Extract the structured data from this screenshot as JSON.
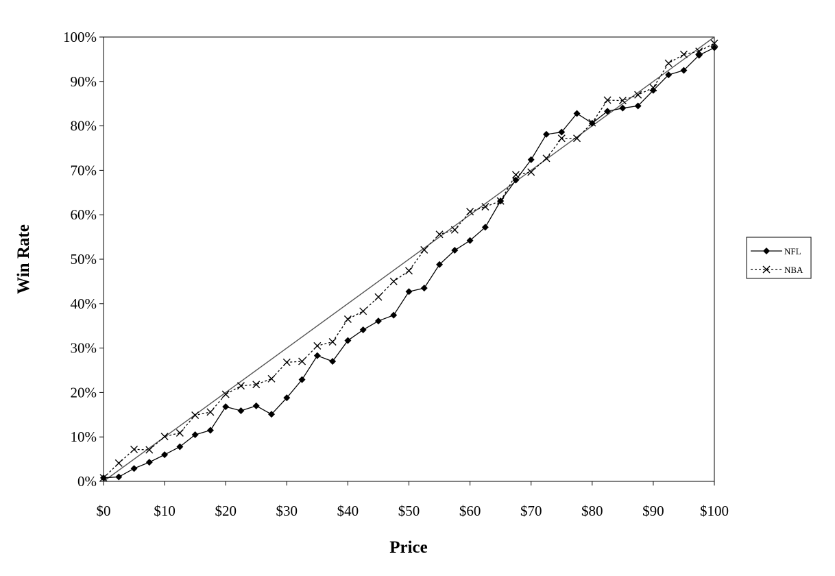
{
  "chart_data": {
    "type": "line",
    "title": "",
    "xlabel": "Price",
    "ylabel": "Win Rate",
    "xlim": [
      0,
      100
    ],
    "ylim": [
      0,
      100
    ],
    "x_ticks": [
      0,
      10,
      20,
      30,
      40,
      50,
      60,
      70,
      80,
      90,
      100
    ],
    "x_tick_labels": [
      "$0",
      "$10",
      "$20",
      "$30",
      "$40",
      "$50",
      "$60",
      "$70",
      "$80",
      "$90",
      "$100"
    ],
    "y_ticks": [
      0,
      10,
      20,
      30,
      40,
      50,
      60,
      70,
      80,
      90,
      100
    ],
    "y_tick_labels": [
      "0%",
      "10%",
      "20%",
      "30%",
      "40%",
      "50%",
      "60%",
      "70%",
      "80%",
      "90%",
      "100%"
    ],
    "grid": false,
    "legend_position": "right",
    "reference_line": {
      "x": [
        0,
        100
      ],
      "y": [
        0,
        100
      ]
    },
    "x": [
      0,
      2.5,
      5,
      7.5,
      10,
      12.5,
      15,
      17.5,
      20,
      22.5,
      25,
      27.5,
      30,
      32.5,
      35,
      37.5,
      40,
      42.5,
      45,
      47.5,
      50,
      52.5,
      55,
      57.5,
      60,
      62.5,
      65,
      67.5,
      70,
      72.5,
      75,
      77.5,
      80,
      82.5,
      85,
      87.5,
      90,
      92.5,
      95,
      97.5,
      100
    ],
    "series": [
      {
        "name": "NFL",
        "style": "solid",
        "marker": "diamond",
        "color": "#000000",
        "values": [
          0.8,
          1.0,
          2.9,
          4.3,
          6.0,
          7.8,
          10.5,
          11.5,
          16.8,
          15.9,
          17.0,
          15.1,
          18.8,
          22.9,
          28.3,
          27.0,
          31.7,
          34.1,
          36.1,
          37.4,
          42.7,
          43.5,
          48.8,
          52.0,
          54.2,
          57.2,
          63.1,
          67.8,
          72.4,
          78.1,
          78.6,
          82.8,
          80.6,
          83.3,
          84.0,
          84.5,
          88.0,
          91.5,
          92.5,
          95.9,
          97.6
        ]
      },
      {
        "name": "NBA",
        "style": "dotted",
        "marker": "x",
        "color": "#000000",
        "values": [
          0.8,
          4.1,
          7.2,
          7.1,
          10.1,
          10.9,
          14.9,
          15.6,
          19.6,
          21.5,
          21.8,
          23.1,
          26.8,
          27.0,
          30.5,
          31.4,
          36.5,
          38.3,
          41.5,
          45.0,
          47.4,
          52.1,
          55.6,
          56.6,
          60.7,
          61.8,
          63.1,
          69.0,
          69.6,
          72.7,
          77.2,
          77.2,
          80.7,
          85.8,
          85.7,
          87.0,
          88.6,
          94.1,
          96.1,
          96.8,
          98.6
        ]
      }
    ]
  }
}
